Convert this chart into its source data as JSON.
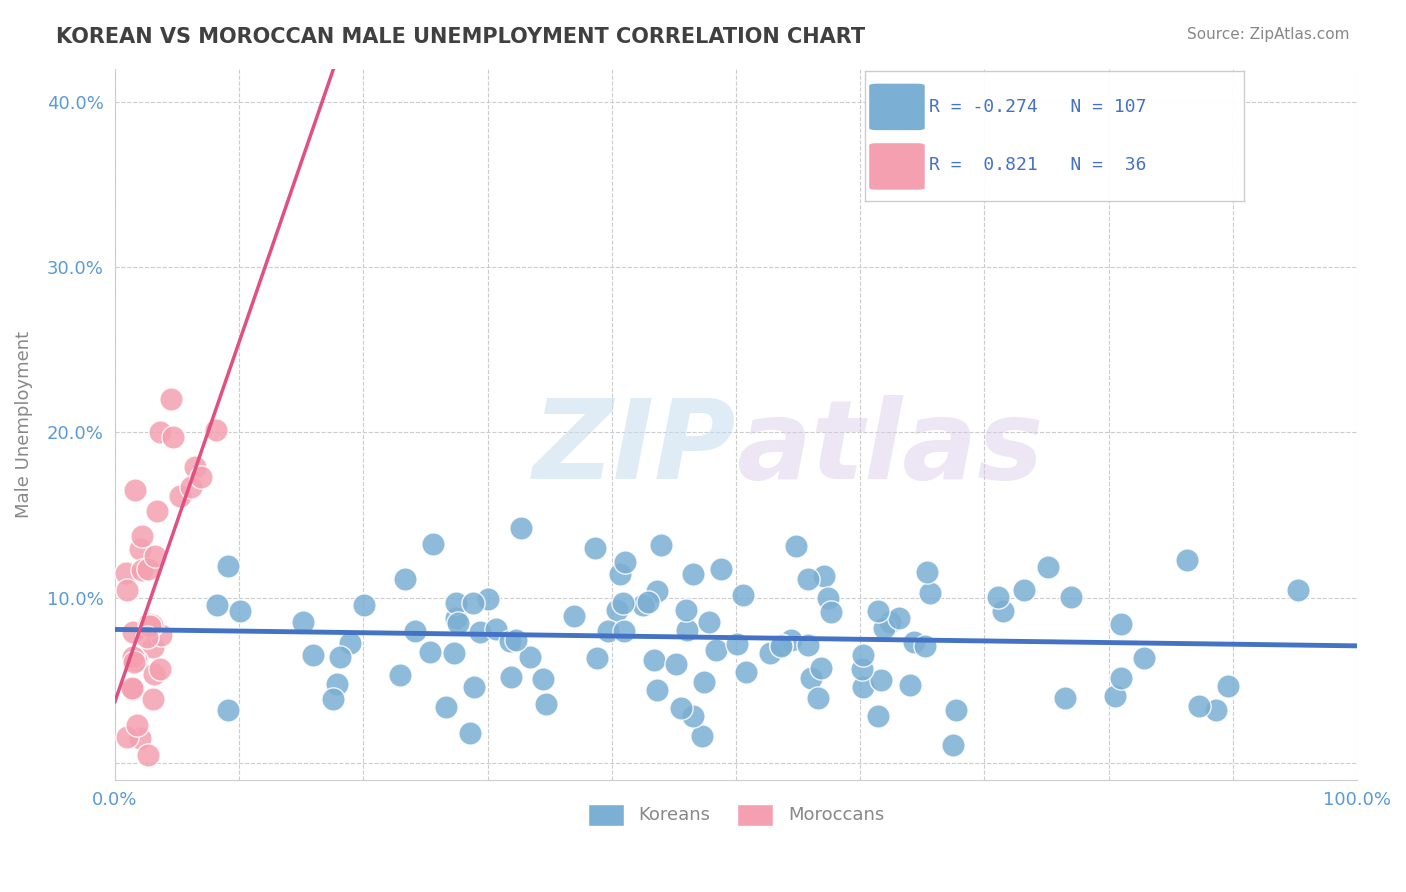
{
  "title": "KOREAN VS MOROCCAN MALE UNEMPLOYMENT CORRELATION CHART",
  "source_text": "Source: ZipAtlas.com",
  "ylabel": "Male Unemployment",
  "xlim": [
    0.0,
    1.0
  ],
  "ylim": [
    -0.01,
    0.42
  ],
  "korean_R": -0.274,
  "korean_N": 107,
  "moroccan_R": 0.821,
  "moroccan_N": 36,
  "korean_color": "#7bafd4",
  "moroccan_color": "#f4a0b0",
  "korean_line_color": "#4472c4",
  "moroccan_line_color": "#e05080",
  "watermark_zip": "ZIP",
  "watermark_atlas": "atlas",
  "legend_korean": "Koreans",
  "legend_moroccan": "Moroccans",
  "background_color": "#ffffff",
  "grid_color": "#cccccc",
  "title_color": "#404040",
  "axis_color": "#888888",
  "tick_color": "#5b9bd5"
}
